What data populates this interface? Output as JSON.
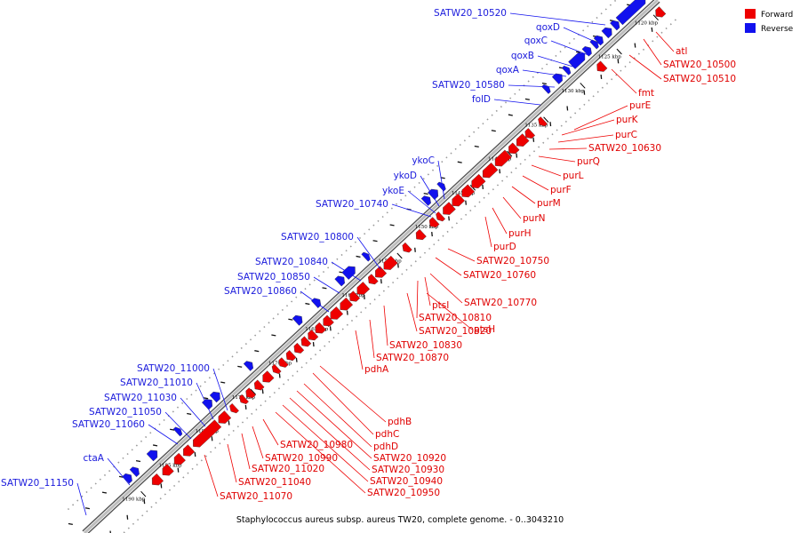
{
  "caption": "Staphylococcus aureus subsp. aureus TW20, complete genome. - 0..3043210",
  "legend": [
    {
      "label": "Forward",
      "color": "#ee0000"
    },
    {
      "label": "Reverse",
      "color": "#1111ee"
    }
  ],
  "colors": {
    "forward": "#ee0000",
    "reverse": "#1111ee",
    "backbone": "#888888"
  },
  "ticks": [
    {
      "kbp": 1120,
      "label": "1120 kbp"
    },
    {
      "kbp": 1125,
      "label": "1125 kbp"
    },
    {
      "kbp": 1130,
      "label": "1130 kbp"
    },
    {
      "kbp": 1135,
      "label": "1135 kbp"
    },
    {
      "kbp": 1140,
      "label": "1140 kbp"
    },
    {
      "kbp": 1145,
      "label": "1145 kbp"
    },
    {
      "kbp": 1150,
      "label": "1150 kbp"
    },
    {
      "kbp": 1155,
      "label": "1155 kbp"
    },
    {
      "kbp": 1160,
      "label": "1160 kbp"
    },
    {
      "kbp": 1165,
      "label": "1165 kbp"
    },
    {
      "kbp": 1170,
      "label": "1170 kbp"
    },
    {
      "kbp": 1175,
      "label": "1175 kbp"
    },
    {
      "kbp": 1180,
      "label": "1180 kbp"
    },
    {
      "kbp": 1185,
      "label": "1185 kbp"
    },
    {
      "kbp": 1190,
      "label": "1190 kbp"
    }
  ],
  "reverse_labels": [
    "SATW20_10520",
    "qoxD",
    "qoxC",
    "qoxB",
    "qoxA",
    "SATW20_10580",
    "folD",
    "ykoC",
    "ykoD",
    "ykoE",
    "SATW20_10740",
    "SATW20_10800",
    "SATW20_10840",
    "SATW20_10850",
    "SATW20_10860",
    "SATW20_11000",
    "SATW20_11010",
    "SATW20_11030",
    "SATW20_11050",
    "SATW20_11060",
    "ctaA",
    "SATW20_11150"
  ],
  "forward_labels": [
    "atl",
    "SATW20_10500",
    "SATW20_10510",
    "fmt",
    "purE",
    "purK",
    "purC",
    "SATW20_10630",
    "purQ",
    "purL",
    "purF",
    "purM",
    "purN",
    "purH",
    "purD",
    "SATW20_10750",
    "SATW20_10760",
    "SATW20_10770",
    "ptsI",
    "SATW20_10810",
    "ptsH",
    "SATW20_10820",
    "SATW20_10830",
    "SATW20_10870",
    "pdhA",
    "pdhB",
    "pdhC",
    "pdhD",
    "SATW20_10920",
    "SATW20_10930",
    "SATW20_10940",
    "SATW20_10950",
    "SATW20_10980",
    "SATW20_10990",
    "SATW20_11020",
    "SATW20_11040",
    "SATW20_11070"
  ]
}
